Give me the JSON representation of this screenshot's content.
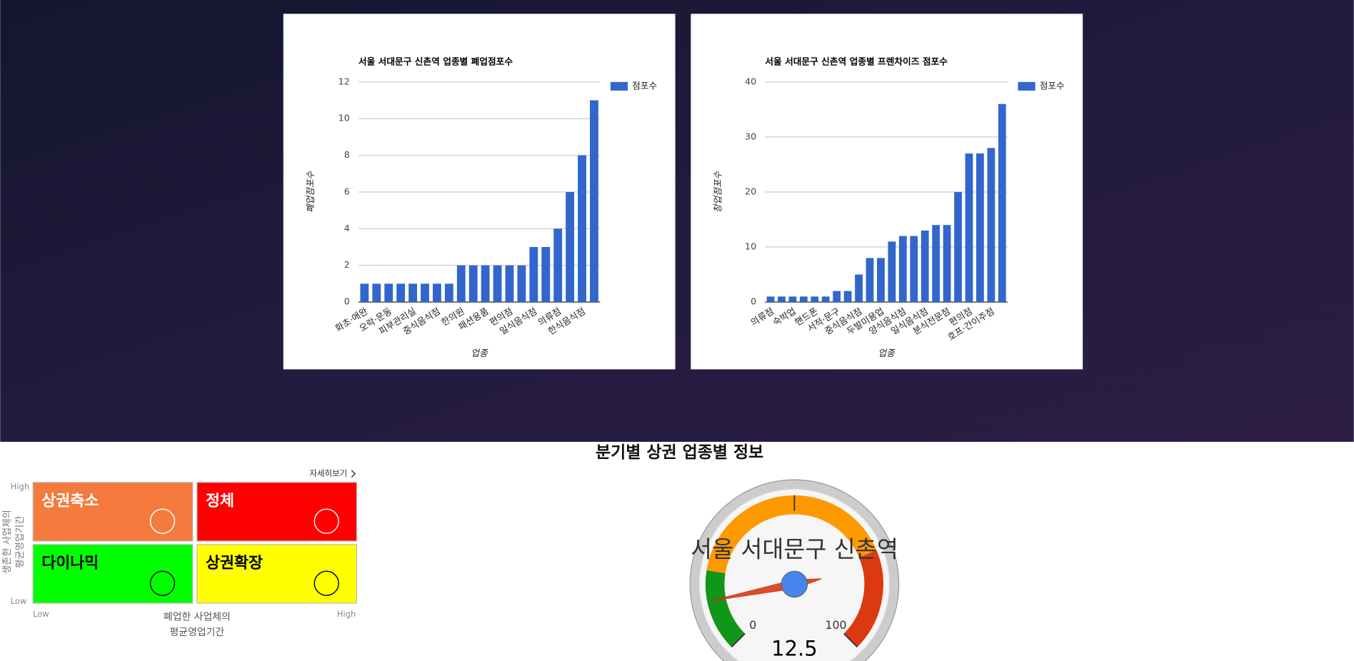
{
  "chart_data": [
    {
      "type": "bar",
      "title": "서울 서대문구 신촌역 업종별 폐업점포수",
      "y_label": "폐업점포수",
      "x_label": "업종",
      "categories": [
        "화초·애완",
        null,
        "오락·운동",
        null,
        "피부관리실",
        null,
        "중식음식점",
        null,
        "한의원",
        null,
        "패션용품",
        null,
        "편의점",
        null,
        "일식음식점",
        null,
        "의류점",
        null,
        "한식음식점",
        null
      ],
      "series": [
        {
          "name": "점포수",
          "color": "#3366cc",
          "values": [
            1,
            1,
            1,
            1,
            1,
            1,
            1,
            1,
            2,
            2,
            2,
            2,
            2,
            2,
            3,
            3,
            4,
            6,
            8,
            11
          ]
        }
      ],
      "ylim": [
        0,
        12
      ],
      "yticks": [
        0,
        2,
        4,
        6,
        8,
        10,
        12
      ],
      "grid": true,
      "legend": "right"
    },
    {
      "type": "bar",
      "title": "서울 서대문구 신촌역 업종별 프렌차이즈 점포수",
      "y_label": "창업점포수",
      "x_label": "업종",
      "categories": [
        "의류점",
        null,
        "숙박업",
        null,
        "핸드폰",
        null,
        "서적·문구",
        null,
        "중식음식점",
        null,
        "두발미용업",
        null,
        "양식음식점",
        null,
        "일식음식점",
        null,
        "분식전문점",
        null,
        "편의점",
        null,
        "호프·간이주점",
        null
      ],
      "series": [
        {
          "name": "점포수",
          "color": "#3366cc",
          "values": [
            1,
            1,
            1,
            1,
            1,
            1,
            2,
            2,
            5,
            8,
            8,
            11,
            12,
            12,
            13,
            14,
            14,
            20,
            27,
            27,
            28,
            36
          ]
        }
      ],
      "ylim": [
        0,
        40
      ],
      "yticks": [
        0,
        10,
        20,
        30,
        40
      ],
      "grid": true,
      "legend": "right"
    }
  ],
  "section_title": "분기별 상권 업종별 정보",
  "quadrant": {
    "link": "자세히보기",
    "y_axis": {
      "high": "High",
      "low": "Low",
      "label_lines": [
        "생존한 사업체의",
        "평균영업기간"
      ]
    },
    "x_axis": {
      "low": "Low",
      "high": "High",
      "label_lines": [
        "폐업한 사업체의",
        "평균영업기간"
      ]
    },
    "cells": [
      {
        "label": "상권축소",
        "color": "#f47b3d",
        "text_color": "#ffffff"
      },
      {
        "label": "정체",
        "color": "#ff0000",
        "text_color": "#ffffff"
      },
      {
        "label": "다이나믹",
        "color": "#00ff00",
        "text_color": "#000000"
      },
      {
        "label": "상권확장",
        "color": "#ffff00",
        "text_color": "#000000"
      }
    ]
  },
  "gauge": {
    "type": "gauge",
    "label": "서울 서대문구 신촌역",
    "value": 12.5,
    "lim": [
      0,
      100
    ],
    "ticks": [
      0,
      100
    ],
    "bands": [
      {
        "from": 0,
        "to": 20,
        "color": "#109618"
      },
      {
        "from": 20,
        "to": 75,
        "color": "#ff9900"
      },
      {
        "from": 75,
        "to": 100,
        "color": "#dc3912"
      }
    ]
  }
}
